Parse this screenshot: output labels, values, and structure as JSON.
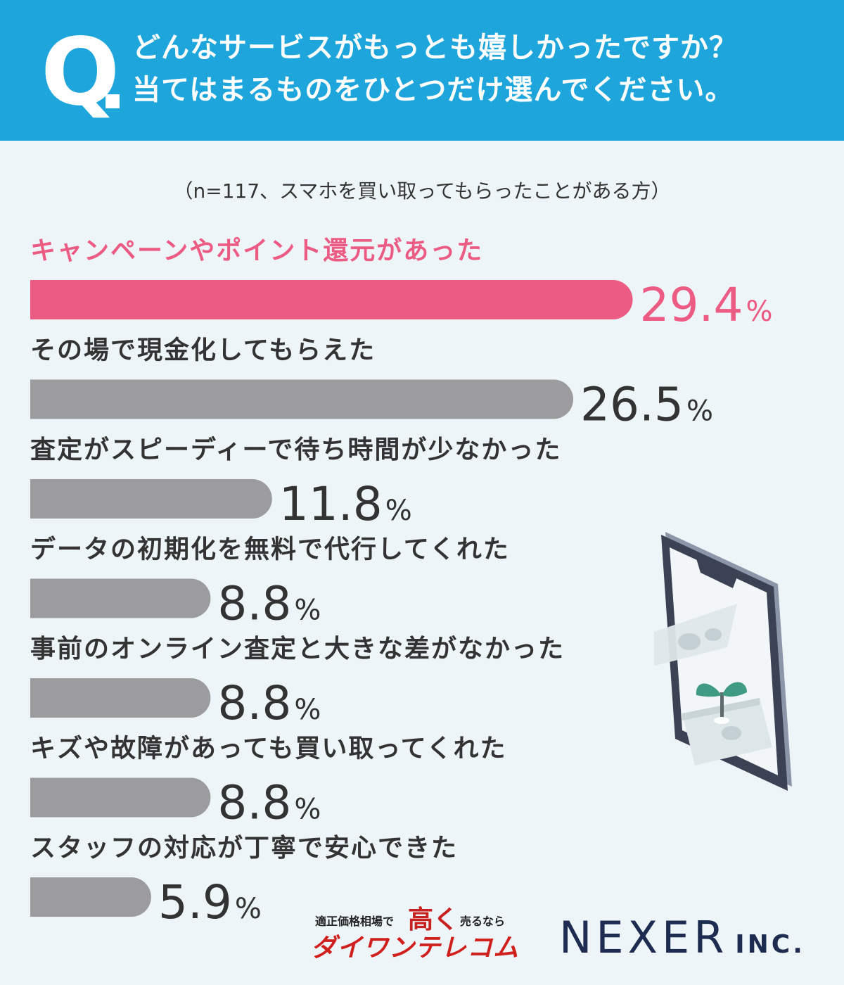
{
  "question": {
    "letter": "Q",
    "line1": "どんなサービスがもっとも嬉しかったですか？",
    "line2": "当てはまるものをひとつだけ選んでください。"
  },
  "sample_note": "（n=117、スマホを買い取ってもらったことがある方）",
  "chart_data": {
    "type": "bar",
    "orientation": "horizontal",
    "categories": [
      "キャンペーンやポイント還元があった",
      "その場で現金化してもらえた",
      "査定がスピーディーで待ち時間が少なかった",
      "データの初期化を無料で代行してくれた",
      "事前のオンライン査定と大きな差がなかった",
      "キズや故障があっても買い取ってくれた",
      "スタッフの対応が丁寧で安心できた"
    ],
    "values": [
      29.4,
      26.5,
      11.8,
      8.8,
      8.8,
      8.8,
      5.9
    ],
    "value_labels": [
      "29.4",
      "26.5",
      "11.8",
      "8.8",
      "8.8",
      "8.8",
      "5.9"
    ],
    "unit": "%",
    "xlim": [
      0,
      30
    ],
    "grid": false,
    "highlight_index": 0,
    "colors": {
      "highlight": "#ec5b83",
      "default": "#9c9c9f",
      "highlight_text": "#ec5b83",
      "default_text": "#333333"
    }
  },
  "logos": {
    "daiwan": {
      "small_text": "適正価格相場で",
      "big_text": "高く",
      "small_text2": "売るなら",
      "main_text": "ダイワンテレコム"
    },
    "nexer": {
      "main": "NEXER",
      "suffix": "INC."
    }
  },
  "colors": {
    "header_bg": "#1ea6dc",
    "page_bg": "#eef5f8"
  }
}
